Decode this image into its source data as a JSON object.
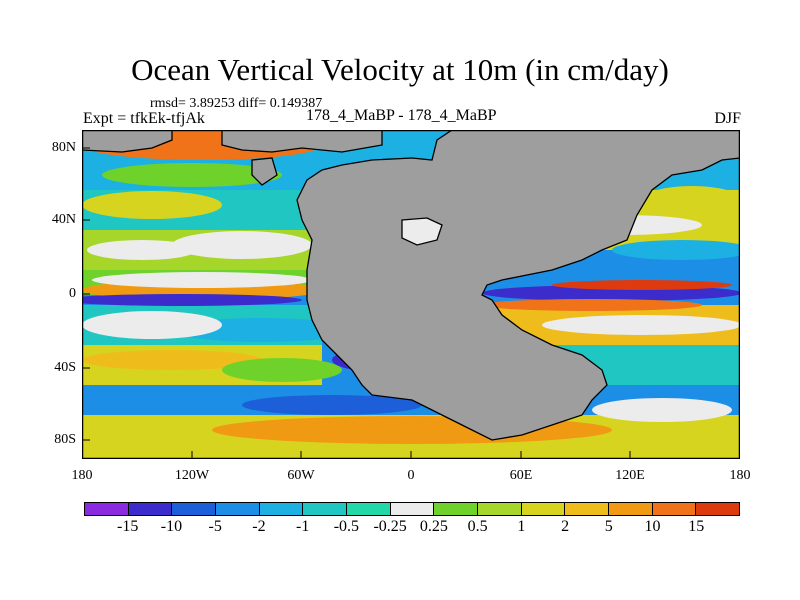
{
  "title": "Ocean Vertical Velocity at 10m (in cm/day)",
  "stats": "rmsd= 3.89253 diff= 0.149387",
  "expt": "Expt = tfkEk-tfjAk",
  "diff_label": "178_4_MaBP - 178_4_MaBP",
  "season": "DJF",
  "lat_labels": [
    "80N",
    "40N",
    "0",
    "40S",
    "80S"
  ],
  "lon_labels": [
    "180",
    "120W",
    "60W",
    "0",
    "60E",
    "120E",
    "180"
  ],
  "colorbar": {
    "labels": [
      "-15",
      "-10",
      "-5",
      "-2",
      "-1",
      "-0.5",
      "-0.25",
      "0.25",
      "0.5",
      "1",
      "2",
      "5",
      "10",
      "15"
    ],
    "colors": [
      "#8a2be2",
      "#3c2ccc",
      "#1c5fd9",
      "#1d8ee6",
      "#1cb1e2",
      "#20c7c2",
      "#23d8a8",
      "#ececec",
      "#6fd22a",
      "#a6d62a",
      "#d7d41f",
      "#eebd1b",
      "#f09a14",
      "#f0731a",
      "#dd3a10"
    ]
  },
  "land_color": "#9e9e9e"
}
